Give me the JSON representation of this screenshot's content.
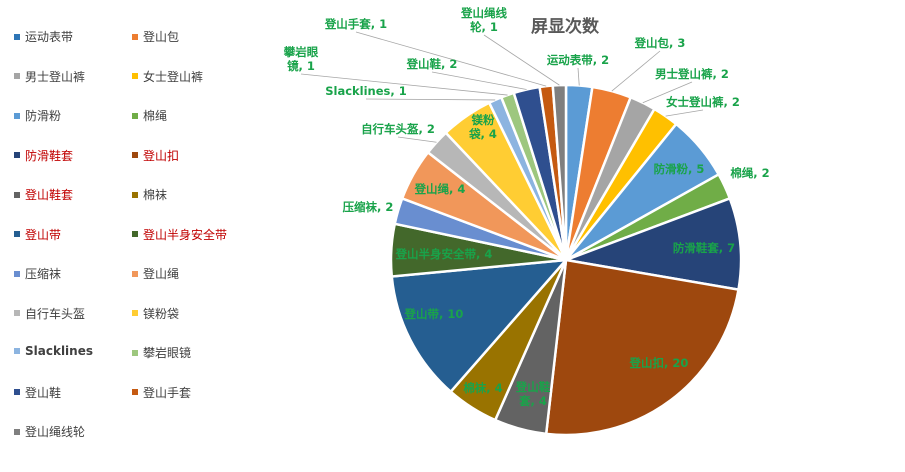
{
  "chart_data": {
    "type": "pie",
    "title": "屏显次数",
    "legend_position": "left",
    "slices": [
      {
        "name": "运动表带",
        "value": 2,
        "color": "#5b9bd5",
        "legend_color": "#2e75b6",
        "legend_style": "normal",
        "label": [
          "运动表带, 2"
        ]
      },
      {
        "name": "登山包",
        "value": 3,
        "color": "#ed7d31",
        "legend_color": "#ed7d31",
        "legend_style": "normal",
        "label": [
          "登山包, 3"
        ]
      },
      {
        "name": "男士登山裤",
        "value": 2,
        "color": "#a5a5a5",
        "legend_color": "#a5a5a5",
        "legend_style": "normal",
        "label": [
          "男士登山裤, 2"
        ]
      },
      {
        "name": "女士登山裤",
        "value": 2,
        "color": "#ffc000",
        "legend_color": "#ffc000",
        "legend_style": "normal",
        "label": [
          "女士登山裤, 2"
        ]
      },
      {
        "name": "防滑粉",
        "value": 5,
        "color": "#5b9bd5",
        "legend_color": "#5b9bd5",
        "legend_style": "normal",
        "label": [
          "防滑粉, 5"
        ]
      },
      {
        "name": "棉绳",
        "value": 2,
        "color": "#70ad47",
        "legend_color": "#70ad47",
        "legend_style": "normal",
        "label": [
          "棉绳, 2"
        ]
      },
      {
        "name": "防滑鞋套",
        "value": 7,
        "color": "#264478",
        "legend_color": "#264478",
        "legend_style": "red",
        "label": [
          "防滑鞋套, 7"
        ]
      },
      {
        "name": "登山扣",
        "value": 20,
        "color": "#9e480e",
        "legend_color": "#9e480e",
        "legend_style": "red",
        "label": [
          "登山扣, 20"
        ]
      },
      {
        "name": "登山鞋套",
        "value": 4,
        "color": "#636363",
        "legend_color": "#636363",
        "legend_style": "red",
        "label": [
          "登山鞋",
          "套, 4"
        ]
      },
      {
        "name": "棉袜",
        "value": 4,
        "color": "#997300",
        "legend_color": "#997300",
        "legend_style": "normal",
        "label": [
          "棉袜, 4"
        ]
      },
      {
        "name": "登山带",
        "value": 10,
        "color": "#255e91",
        "legend_color": "#255e91",
        "legend_style": "red",
        "label": [
          "登山带, 10"
        ]
      },
      {
        "name": "登山半身安全带",
        "value": 4,
        "color": "#43682b",
        "legend_color": "#43682b",
        "legend_style": "red",
        "label": [
          "登山半身安全带, 4"
        ]
      },
      {
        "name": "压缩袜",
        "value": 2,
        "color": "#698ed0",
        "legend_color": "#698ed0",
        "legend_style": "normal",
        "label": [
          "压缩袜, 2"
        ]
      },
      {
        "name": "登山绳",
        "value": 4,
        "color": "#f1975a",
        "legend_color": "#f1975a",
        "legend_style": "normal",
        "label": [
          "登山绳, 4"
        ]
      },
      {
        "name": "自行车头盔",
        "value": 2,
        "color": "#b7b7b7",
        "legend_color": "#b7b7b7",
        "legend_style": "normal",
        "label": [
          "自行车头盔, 2"
        ]
      },
      {
        "name": "镁粉袋",
        "value": 4,
        "color": "#ffcd33",
        "legend_color": "#ffcd33",
        "legend_style": "normal",
        "label": [
          "镁粉",
          "袋, 4"
        ]
      },
      {
        "name": "Slacklines",
        "value": 1,
        "color": "#8cb4e0",
        "legend_color": "#8cb4e0",
        "legend_style": "bold",
        "label": [
          "Slacklines, 1"
        ]
      },
      {
        "name": "攀岩眼镜",
        "value": 1,
        "color": "#9dc77e",
        "legend_color": "#9dc77e",
        "legend_style": "normal",
        "label": [
          "攀岩眼",
          "镜, 1"
        ]
      },
      {
        "name": "登山鞋",
        "value": 2,
        "color": "#2f4f8f",
        "legend_color": "#2f4f8f",
        "legend_style": "normal",
        "label": [
          "登山鞋, 2"
        ]
      },
      {
        "name": "登山手套",
        "value": 1,
        "color": "#c55a11",
        "legend_color": "#c55a11",
        "legend_style": "normal",
        "label": [
          "登山手套, 1"
        ]
      },
      {
        "name": "登山绳线轮",
        "value": 1,
        "color": "#7f7f7f",
        "legend_color": "#7f7f7f",
        "legend_style": "normal",
        "label": [
          "登山绳线",
          "轮, 1"
        ]
      }
    ]
  }
}
